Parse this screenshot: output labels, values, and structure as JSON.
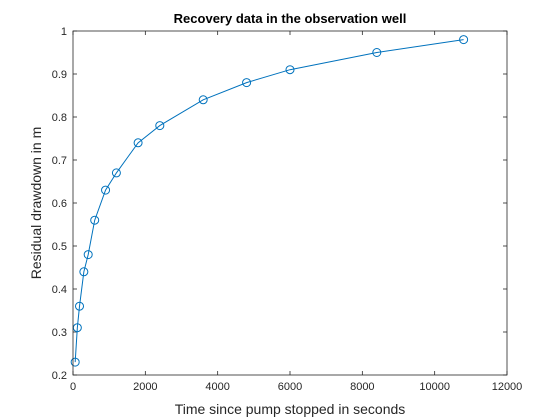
{
  "chart_data": {
    "type": "line",
    "title": "Recovery data in the observation well",
    "xlabel": "Time since pump stopped in seconds",
    "ylabel": "Residual drawdown in m",
    "xlim": [
      0,
      12000
    ],
    "ylim": [
      0.2,
      1.0
    ],
    "xticks": [
      0,
      2000,
      4000,
      6000,
      8000,
      10000,
      12000
    ],
    "yticks": [
      0.2,
      0.3,
      0.4,
      0.5,
      0.6,
      0.7,
      0.8,
      0.9,
      1.0
    ],
    "xtick_labels": [
      "0",
      "2000",
      "4000",
      "6000",
      "8000",
      "10000",
      "12000"
    ],
    "ytick_labels": [
      "0.2",
      "0.3",
      "0.4",
      "0.5",
      "0.6",
      "0.7",
      "0.8",
      "0.9",
      "1"
    ],
    "grid": false,
    "marker": "circle",
    "series": [
      {
        "color": "#0072BD",
        "x": [
          60,
          120,
          180,
          300,
          420,
          600,
          900,
          1200,
          1800,
          2400,
          3600,
          4800,
          6000,
          8400,
          10800
        ],
        "y": [
          0.23,
          0.31,
          0.36,
          0.44,
          0.48,
          0.56,
          0.63,
          0.67,
          0.74,
          0.78,
          0.84,
          0.88,
          0.91,
          0.95,
          0.98
        ]
      }
    ]
  }
}
